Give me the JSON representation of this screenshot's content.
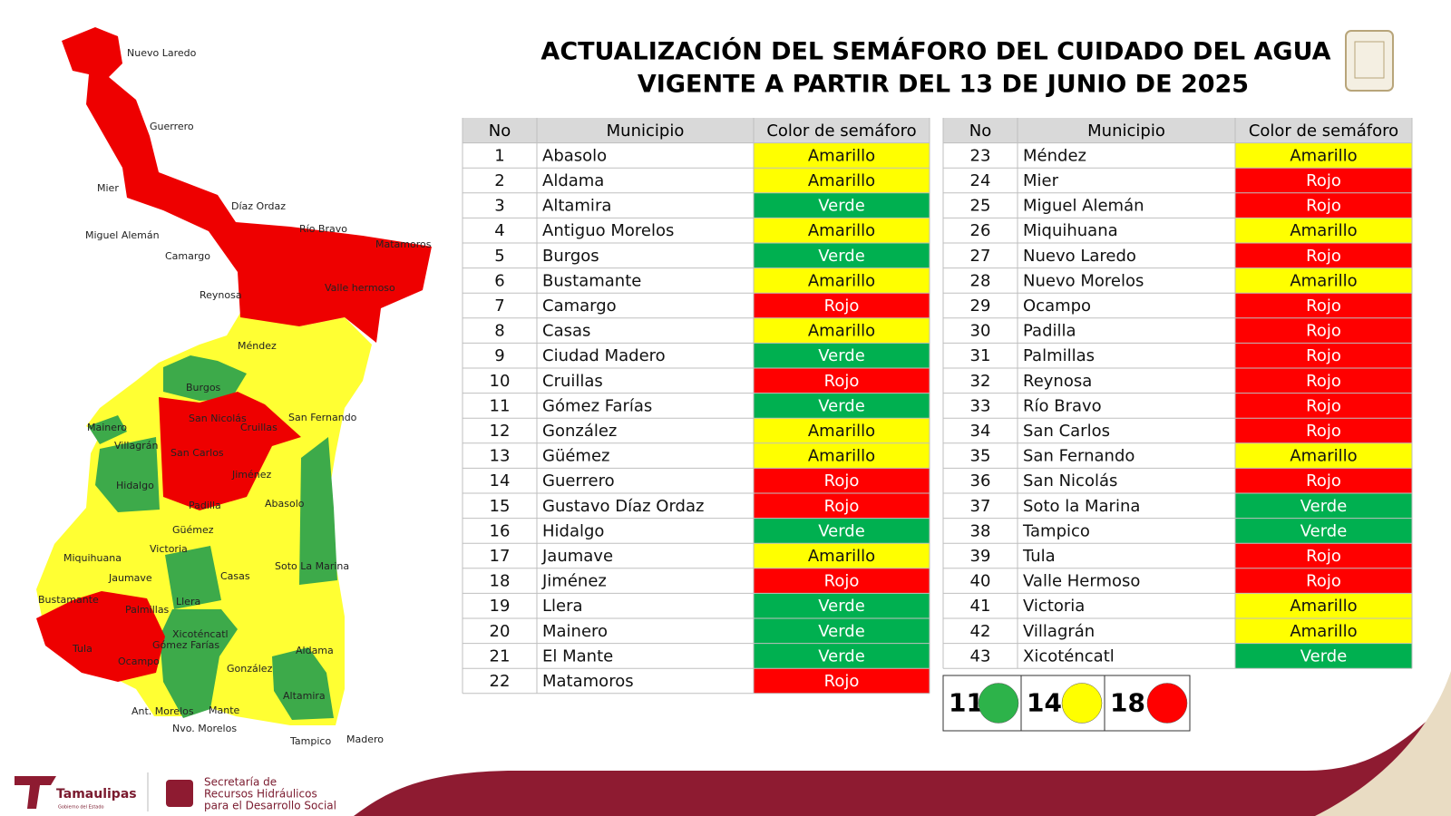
{
  "header": {
    "title_lines": [
      "ACTUALIZACIÓN DEL SEMÁFORO DEL CUIDADO DEL AGUA",
      "VIGENTE A PARTIR DEL 13 DE JUNIO DE 2025"
    ]
  },
  "status_colors": {
    "Amarillo": "#ffff00",
    "Verde": "#00b050",
    "Rojo": "#ff0000"
  },
  "tables": [
    {
      "columns": [
        "No",
        "Municipio",
        "Color de semáforo"
      ],
      "rows": [
        [
          1,
          "Abasolo",
          "Amarillo"
        ],
        [
          2,
          "Aldama",
          "Amarillo"
        ],
        [
          3,
          "Altamira",
          "Verde"
        ],
        [
          4,
          "Antiguo Morelos",
          "Amarillo"
        ],
        [
          5,
          "Burgos",
          "Verde"
        ],
        [
          6,
          "Bustamante",
          "Amarillo"
        ],
        [
          7,
          "Camargo",
          "Rojo"
        ],
        [
          8,
          "Casas",
          "Amarillo"
        ],
        [
          9,
          "Ciudad Madero",
          "Verde"
        ],
        [
          10,
          "Cruillas",
          "Rojo"
        ],
        [
          11,
          "Gómez Farías",
          "Verde"
        ],
        [
          12,
          "González",
          "Amarillo"
        ],
        [
          13,
          "Güémez",
          "Amarillo"
        ],
        [
          14,
          "Guerrero",
          "Rojo"
        ],
        [
          15,
          "Gustavo Díaz Ordaz",
          "Rojo"
        ],
        [
          16,
          "Hidalgo",
          "Verde"
        ],
        [
          17,
          "Jaumave",
          "Amarillo"
        ],
        [
          18,
          "Jiménez",
          "Rojo"
        ],
        [
          19,
          "Llera",
          "Verde"
        ],
        [
          20,
          "Mainero",
          "Verde"
        ],
        [
          21,
          "El Mante",
          "Verde"
        ],
        [
          22,
          "Matamoros",
          "Rojo"
        ]
      ]
    },
    {
      "columns": [
        "No",
        "Municipio",
        "Color de semáforo"
      ],
      "rows": [
        [
          23,
          "Méndez",
          "Amarillo"
        ],
        [
          24,
          "Mier",
          "Rojo"
        ],
        [
          25,
          "Miguel Alemán",
          "Rojo"
        ],
        [
          26,
          "Miquihuana",
          "Amarillo"
        ],
        [
          27,
          "Nuevo Laredo",
          "Rojo"
        ],
        [
          28,
          "Nuevo Morelos",
          "Amarillo"
        ],
        [
          29,
          "Ocampo",
          "Rojo"
        ],
        [
          30,
          "Padilla",
          "Rojo"
        ],
        [
          31,
          "Palmillas",
          "Rojo"
        ],
        [
          32,
          "Reynosa",
          "Rojo"
        ],
        [
          33,
          "Río Bravo",
          "Rojo"
        ],
        [
          34,
          "San Carlos",
          "Rojo"
        ],
        [
          35,
          "San Fernando",
          "Amarillo"
        ],
        [
          36,
          "San Nicolás",
          "Rojo"
        ],
        [
          37,
          "Soto la Marina",
          "Verde"
        ],
        [
          38,
          "Tampico",
          "Verde"
        ],
        [
          39,
          "Tula",
          "Rojo"
        ],
        [
          40,
          "Valle Hermoso",
          "Rojo"
        ],
        [
          41,
          "Victoria",
          "Amarillo"
        ],
        [
          42,
          "Villagrán",
          "Amarillo"
        ],
        [
          43,
          "Xicoténcatl",
          "Verde"
        ]
      ]
    }
  ],
  "summary": [
    {
      "count": 11,
      "color": "#2db34a"
    },
    {
      "count": 14,
      "color": "#ffff00"
    },
    {
      "count": 18,
      "color": "#ff0000"
    }
  ],
  "map_labels": [
    "Nuevo Laredo",
    "Guerrero",
    "Mier",
    "Díaz Ordaz",
    "Miguel Alemán",
    "Río Bravo",
    "Camargo",
    "Matamoros",
    "Reynosa",
    "Valle hermoso",
    "Méndez",
    "Burgos",
    "San Fernando",
    "Mainero",
    "San Nicolás",
    "Cruillas",
    "Villagrán",
    "San Carlos",
    "Hidalgo",
    "Jiménez",
    "Padilla",
    "Abasolo",
    "Güémez",
    "Miquihuana",
    "Victoria",
    "Jaumave",
    "Soto La Marina",
    "Casas",
    "Bustamante",
    "Palmillas",
    "Llera",
    "Tula",
    "Xicoténcatl",
    "Gómez Farías",
    "Ocampo",
    "Aldama",
    "González",
    "Altamira",
    "Ant. Morelos",
    "Nvo. Morelos",
    "Mante",
    "Tampico",
    "Madero"
  ],
  "footer": {
    "brand": "Tamaulipas",
    "brand_sub": "Gobierno del Estado",
    "agency_lines": [
      "Secretaría de",
      "Recursos Hidráulicos",
      "para el Desarrollo Social"
    ]
  }
}
